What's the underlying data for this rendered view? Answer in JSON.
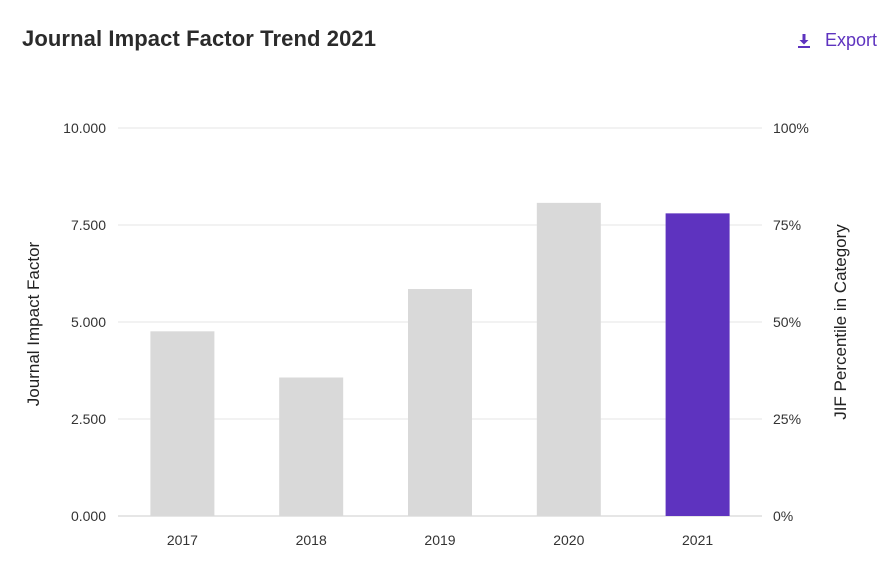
{
  "header": {
    "title": "Journal Impact Factor Trend 2021",
    "export_label": "Export",
    "export_icon": "download-icon"
  },
  "colors": {
    "accent": "#5e33bf",
    "bar": "#d9d9d9",
    "grid": "#e6e6e6",
    "axis": "#cccccc"
  },
  "chart_data": {
    "type": "bar",
    "title": "Journal Impact Factor Trend 2021",
    "categories": [
      "2017",
      "2018",
      "2019",
      "2020",
      "2021"
    ],
    "series": [
      {
        "values": [
          4.76,
          3.57,
          5.85,
          8.07,
          7.8
        ]
      }
    ],
    "highlight_index": 4,
    "ylabel": "Journal Impact Factor",
    "ylabel_right": "JIF Percentile in Category",
    "ylim": [
      0,
      10
    ],
    "y_ticks": [
      "0.000",
      "2.500",
      "5.000",
      "7.500",
      "10.000"
    ],
    "y2_ticks": [
      "0%",
      "25%",
      "50%",
      "75%",
      "100%"
    ],
    "grid": true,
    "legend": "none"
  }
}
